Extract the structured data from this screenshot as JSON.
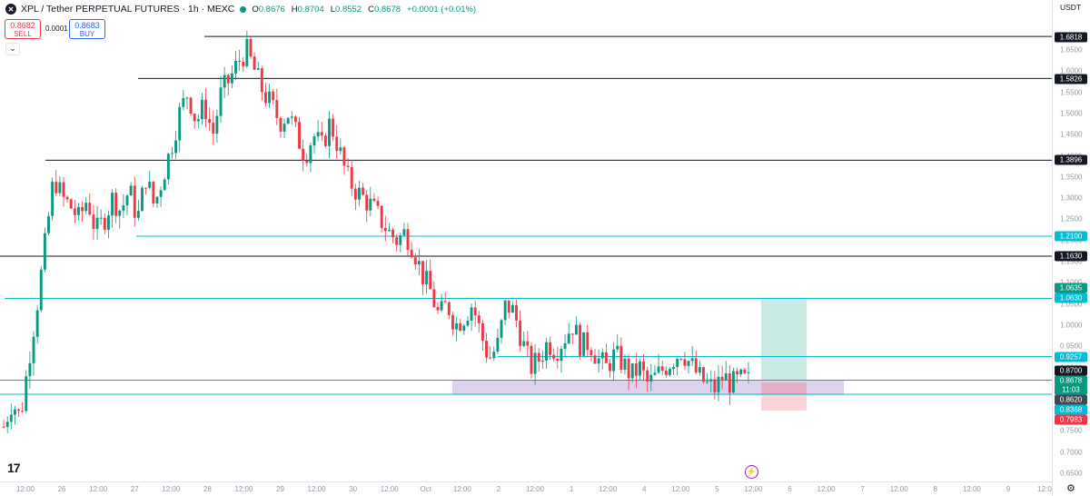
{
  "header": {
    "title": "XPL / Tether PERPETUAL FUTURES · 1h · MEXC",
    "ohlc": {
      "o": "0.8676",
      "h": "0.8704",
      "l": "0.8552",
      "c": "0.8678",
      "chg": "+0.0001 (+0.01%)"
    },
    "o_label": "O",
    "h_label": "H",
    "l_label": "L",
    "c_label": "C"
  },
  "trade": {
    "sell_price": "0.8682",
    "sell_label": "SELL",
    "buy_price": "0.8683",
    "buy_label": "BUY",
    "spread": "0.0001"
  },
  "currency": "USDT",
  "price_ticks": [
    "1.6500",
    "1.6000",
    "1.5500",
    "1.5000",
    "1.4500",
    "1.4000",
    "1.3500",
    "1.3000",
    "1.2500",
    "1.2000",
    "1.1500",
    "1.1000",
    "1.0500",
    "1.0000",
    "0.9500",
    "0.9000",
    "0.8500",
    "0.8000",
    "0.7500",
    "0.7000",
    "0.6500"
  ],
  "price_labels": [
    {
      "value": "1.6818",
      "color": "#131722"
    },
    {
      "value": "1.5826",
      "color": "#131722"
    },
    {
      "value": "1.3896",
      "color": "#131722"
    },
    {
      "value": "1.2100",
      "color": "#00bcd4"
    },
    {
      "value": "1.1630",
      "color": "#131722"
    },
    {
      "value": "1.0635",
      "color": "#089981"
    },
    {
      "value": "1.0630",
      "color": "#00bcd4"
    },
    {
      "value": "0.9257",
      "color": "#00bcd4"
    },
    {
      "value": "0.8700",
      "color": "#131722"
    },
    {
      "value": "0.8678",
      "color": "#089981"
    },
    {
      "value": "11:03",
      "color": "#089981"
    },
    {
      "value": "0.8620",
      "color": "#434651"
    },
    {
      "value": "0.8368",
      "color": "#00bcd4"
    },
    {
      "value": "0.7983",
      "color": "#f23645"
    }
  ],
  "time_ticks": [
    "12:00",
    "26",
    "12:00",
    "27",
    "12:00",
    "28",
    "12:00",
    "29",
    "12:00",
    "30",
    "12:00",
    "Oct",
    "12:00",
    "2",
    "12:00",
    "1",
    "12:00",
    "4",
    "12:00",
    "5",
    "12:00",
    "6",
    "12:00",
    "7",
    "12:00",
    "8",
    "12:00",
    "9",
    "12:0"
  ],
  "colors": {
    "up": "#089981",
    "down": "#f23645",
    "level": "#131722",
    "cyan": "#00bcd4"
  },
  "icons": {
    "logo": "tradingview-logo",
    "settings": "gear-icon",
    "alert": "lightning-icon"
  },
  "chart_data": {
    "type": "candlestick",
    "horizontal_levels": [
      1.6818,
      1.5826,
      1.3896,
      1.21,
      1.163,
      1.063,
      0.9257,
      0.87,
      0.8368
    ],
    "close_path": [
      0.76,
      0.82,
      0.78,
      0.92,
      1.05,
      1.2,
      1.35,
      1.3,
      1.28,
      1.25,
      1.3,
      1.22,
      1.25,
      1.3,
      1.27,
      1.32,
      1.25,
      1.35,
      1.28,
      1.35,
      1.42,
      1.5,
      1.55,
      1.48,
      1.52,
      1.45,
      1.55,
      1.58,
      1.62,
      1.65,
      1.6,
      1.55,
      1.52,
      1.48,
      1.5,
      1.45,
      1.4,
      1.45,
      1.42,
      1.48,
      1.42,
      1.35,
      1.32,
      1.3,
      1.28,
      1.25,
      1.22,
      1.2,
      1.22,
      1.18,
      1.12,
      1.08,
      1.02,
      1.05,
      1.0,
      1.02,
      1.05,
      0.98,
      0.92,
      0.95,
      1.05,
      1.03,
      0.96,
      0.9,
      0.92,
      0.96,
      0.94,
      0.97,
      1.0,
      0.95,
      0.96,
      0.92,
      0.9,
      0.93,
      0.91,
      0.88,
      0.9,
      0.86,
      0.88,
      0.9,
      0.92,
      0.94,
      0.91,
      0.88,
      0.86,
      0.85,
      0.88,
      0.86,
      0.87,
      0.8678
    ]
  }
}
